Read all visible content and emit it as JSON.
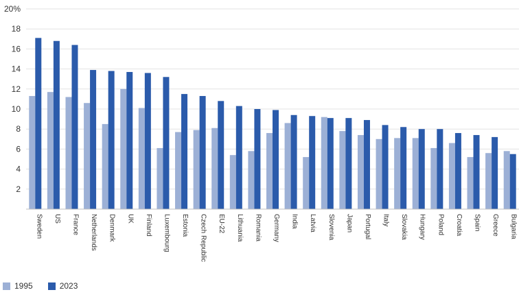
{
  "chart_data": {
    "type": "bar",
    "title": "",
    "xlabel": "",
    "ylabel": "",
    "ylim": [
      0,
      20
    ],
    "yticks": [
      2,
      4,
      6,
      8,
      10,
      12,
      14,
      16,
      18,
      20
    ],
    "ytick_labels": [
      "2",
      "4",
      "6",
      "8",
      "10",
      "12",
      "14",
      "16",
      "18",
      "20%"
    ],
    "grid": "horizontal",
    "legend_position": "bottom-left",
    "categories": [
      "Sweden",
      "US",
      "France",
      "Netherlands",
      "Denmark",
      "UK",
      "Finland",
      "Luxembourg",
      "Estonia",
      "Czech Republic",
      "EU-22",
      "Lithuania",
      "Romania",
      "Germany",
      "India",
      "Latvia",
      "Slovenia",
      "Japan",
      "Portugal",
      "Italy",
      "Slovakia",
      "Hungary",
      "Poland",
      "Croatia",
      "Spain",
      "Greece",
      "Bulgaria"
    ],
    "series": [
      {
        "name": "1995",
        "color": "#9cb0d6",
        "values": [
          11.3,
          11.7,
          11.2,
          10.6,
          8.5,
          12.0,
          10.1,
          6.1,
          7.7,
          7.9,
          8.1,
          5.4,
          5.8,
          7.6,
          8.6,
          5.2,
          9.2,
          7.8,
          7.4,
          7.0,
          7.1,
          7.1,
          6.1,
          6.6,
          5.2,
          5.6,
          5.8
        ]
      },
      {
        "name": "2023",
        "color": "#2b5bab",
        "values": [
          17.1,
          16.8,
          16.4,
          13.9,
          13.8,
          13.7,
          13.6,
          13.2,
          11.5,
          11.3,
          10.8,
          10.3,
          10.0,
          9.9,
          9.4,
          9.3,
          9.1,
          9.1,
          8.9,
          8.4,
          8.2,
          8.0,
          8.0,
          7.6,
          7.4,
          7.2,
          5.5
        ]
      }
    ]
  }
}
